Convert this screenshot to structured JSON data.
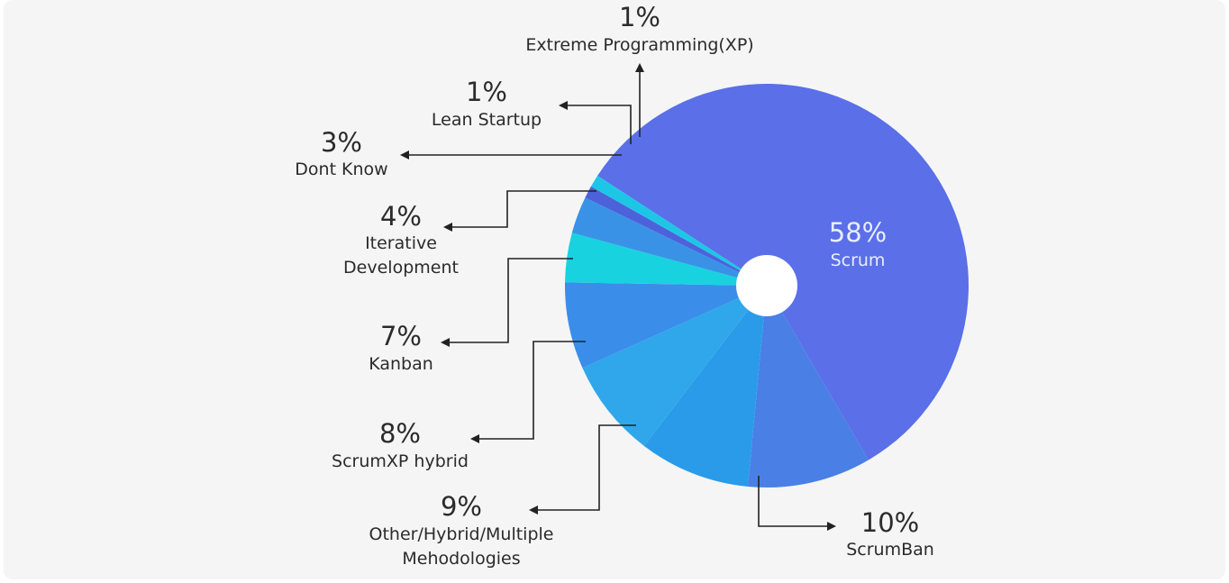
{
  "chart_data": {
    "type": "pie",
    "slices": [
      {
        "name": "Scrum",
        "pct_label": "58%",
        "value": 58,
        "color": "#5a6fe8",
        "label_lines": [
          "Scrum"
        ]
      },
      {
        "name": "ScrumBan",
        "pct_label": "10%",
        "value": 10,
        "color": "#4a7fe6",
        "label_lines": [
          "ScrumBan"
        ]
      },
      {
        "name": "Other/Hybrid/Multiple Mehodologies",
        "pct_label": "9%",
        "value": 9,
        "color": "#2a9be9",
        "label_lines": [
          "Other/Hybrid/Multiple",
          "Mehodologies"
        ]
      },
      {
        "name": "ScrumXP hybrid",
        "pct_label": "8%",
        "value": 8,
        "color": "#2fa7ea",
        "label_lines": [
          "ScrumXP hybrid"
        ]
      },
      {
        "name": "Kanban",
        "pct_label": "7%",
        "value": 7,
        "color": "#3a8eea",
        "label_lines": [
          "Kanban"
        ]
      },
      {
        "name": "Iterative Development",
        "pct_label": "4%",
        "value": 4,
        "color": "#18d2e0",
        "label_lines": [
          "Iterative",
          "Development"
        ]
      },
      {
        "name": "Dont Know",
        "pct_label": "3%",
        "value": 3,
        "color": "#3a92e6",
        "label_lines": [
          "Dont Know"
        ]
      },
      {
        "name": "Lean Startup",
        "pct_label": "1%",
        "value": 1,
        "color": "#4c62da",
        "label_lines": [
          "Lean Startup"
        ]
      },
      {
        "name": "Extreme Programming(XP)",
        "pct_label": "1%",
        "value": 1,
        "color": "#1ec6e6",
        "label_lines": [
          "Extreme Programming(XP)"
        ]
      }
    ],
    "has_center_hole": true
  }
}
